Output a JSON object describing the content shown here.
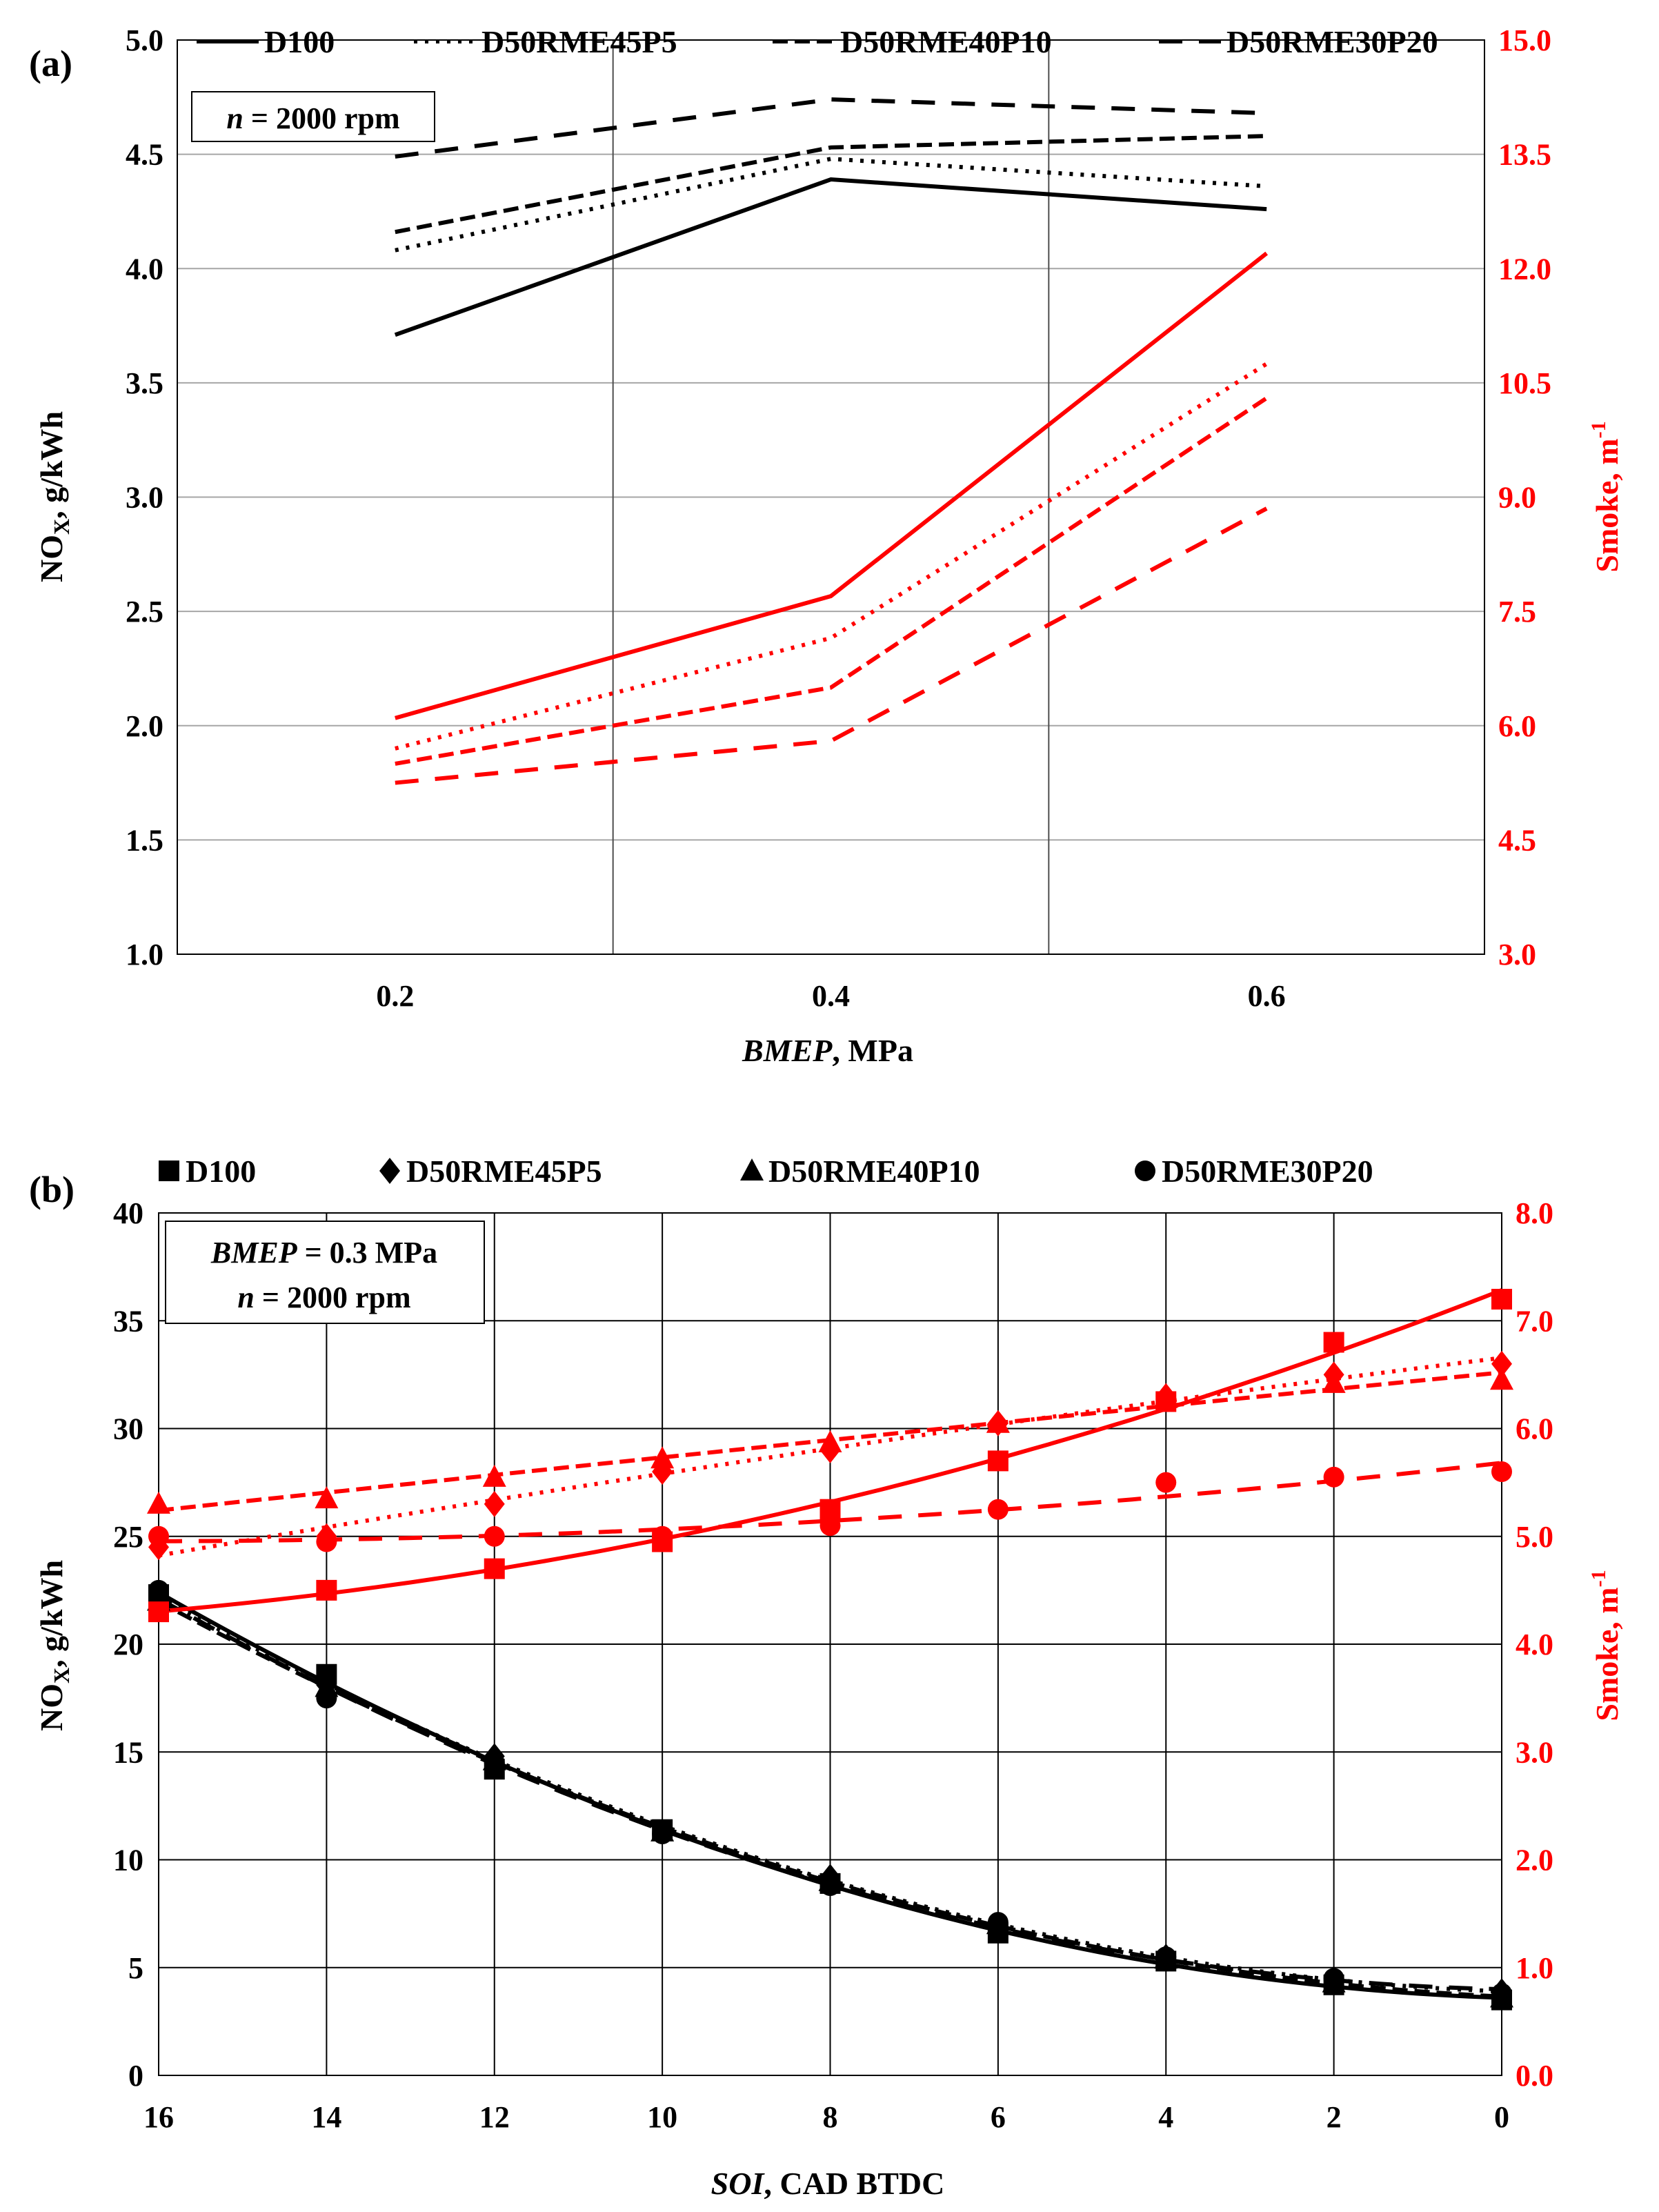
{
  "chart_data": [
    {
      "panel": "(a)",
      "type": "line",
      "note": {
        "var": "n",
        "text": " = 2000 rpm"
      },
      "x": [
        0.2,
        0.4,
        0.6
      ],
      "xlim": [
        0.1,
        0.7
      ],
      "xticks": [
        "0.2",
        "0.4",
        "0.6"
      ],
      "xlabel": {
        "italic": "BMEP",
        "rest": ", MPa"
      },
      "ylabel_left": {
        "pre": "NO",
        "sub": "X",
        "post": ", g/kWh"
      },
      "ylabel_right": {
        "pre": "Smoke, m",
        "sup": "-1"
      },
      "ylim_left": [
        1.0,
        5.0
      ],
      "ylim_right": [
        3.0,
        15.0
      ],
      "yticks_left": [
        "1.0",
        "1.5",
        "2.0",
        "2.5",
        "3.0",
        "3.5",
        "4.0",
        "4.5",
        "5.0"
      ],
      "yticks_right": [
        "3.0",
        "4.5",
        "6.0",
        "7.5",
        "9.0",
        "10.5",
        "12.0",
        "13.5",
        "15.0"
      ],
      "legend": [
        "D100",
        "D50RME45P5",
        "D50RME40P10",
        "D50RME30P20"
      ],
      "series": [
        {
          "name": "D100",
          "axis": "left",
          "color": "#000000",
          "values": [
            3.71,
            4.39,
            4.26
          ]
        },
        {
          "name": "D50RME45P5",
          "axis": "left",
          "color": "#000000",
          "values": [
            4.08,
            4.48,
            4.36
          ]
        },
        {
          "name": "D50RME40P10",
          "axis": "left",
          "color": "#000000",
          "values": [
            4.16,
            4.53,
            4.58
          ]
        },
        {
          "name": "D50RME30P20",
          "axis": "left",
          "color": "#000000",
          "values": [
            4.49,
            4.74,
            4.68
          ]
        },
        {
          "name": "D100",
          "axis": "right",
          "color": "#ff0000",
          "values": [
            6.1,
            7.7,
            12.2
          ]
        },
        {
          "name": "D50RME45P5",
          "axis": "right",
          "color": "#ff0000",
          "values": [
            5.7,
            7.15,
            10.75
          ]
        },
        {
          "name": "D50RME40P10",
          "axis": "right",
          "color": "#ff0000",
          "values": [
            5.5,
            6.5,
            10.3
          ]
        },
        {
          "name": "D50RME30P20",
          "axis": "right",
          "color": "#ff0000",
          "values": [
            5.25,
            5.8,
            8.85
          ]
        }
      ]
    },
    {
      "panel": "(b)",
      "type": "scatter",
      "note": {
        "line1_var": "BMEP",
        "line1_text": " = 0.3 MPa",
        "line2_var": "n",
        "line2_text": " = 2000 rpm"
      },
      "x": [
        16,
        14,
        12,
        10,
        8,
        6,
        4,
        2,
        0
      ],
      "xlim": [
        16,
        0
      ],
      "xticks": [
        "16",
        "14",
        "12",
        "10",
        "8",
        "6",
        "4",
        "2",
        "0"
      ],
      "xlabel": {
        "italic": "SOI",
        "rest": ", CAD BTDC"
      },
      "ylabel_left": {
        "pre": "NO",
        "sub": "X",
        "post": ", g/kWh"
      },
      "ylabel_right": {
        "pre": "Smoke, m",
        "sup": "-1"
      },
      "ylim_left": [
        0,
        40
      ],
      "ylim_right": [
        0.0,
        8.0
      ],
      "yticks_left": [
        "0",
        "5",
        "10",
        "15",
        "20",
        "25",
        "30",
        "35",
        "40"
      ],
      "yticks_right": [
        "0.0",
        "1.0",
        "2.0",
        "3.0",
        "4.0",
        "5.0",
        "6.0",
        "7.0",
        "8.0"
      ],
      "legend": [
        "D100",
        "D50RME45P5",
        "D50RME40P10",
        "D50RME30P20"
      ],
      "series": [
        {
          "name": "D100",
          "axis": "left",
          "color": "#000000",
          "marker": "square",
          "values": [
            22.3,
            18.6,
            14.2,
            11.4,
            8.9,
            6.6,
            5.3,
            4.2,
            3.5
          ]
        },
        {
          "name": "D50RME45P5",
          "axis": "left",
          "color": "#000000",
          "marker": "diamond",
          "values": [
            22.2,
            18.1,
            14.8,
            11.3,
            9.2,
            7.0,
            5.5,
            4.4,
            3.9
          ]
        },
        {
          "name": "D50RME40P10",
          "axis": "left",
          "color": "#000000",
          "marker": "triangle",
          "values": [
            22.0,
            18.0,
            14.6,
            11.3,
            9.0,
            7.0,
            5.4,
            4.3,
            3.6
          ]
        },
        {
          "name": "D50RME30P20",
          "axis": "left",
          "color": "#000000",
          "marker": "circle",
          "values": [
            22.5,
            17.5,
            14.5,
            11.2,
            8.8,
            7.1,
            5.5,
            4.5,
            3.8
          ]
        },
        {
          "name": "D100",
          "axis": "right",
          "color": "#ff0000",
          "marker": "square",
          "values": [
            4.3,
            4.5,
            4.7,
            4.95,
            5.25,
            5.7,
            6.25,
            6.8,
            7.2
          ]
        },
        {
          "name": "D50RME45P5",
          "axis": "right",
          "color": "#ff0000",
          "marker": "diamond",
          "values": [
            4.9,
            5.0,
            5.3,
            5.6,
            5.8,
            6.05,
            6.3,
            6.5,
            6.6
          ]
        },
        {
          "name": "D50RME40P10",
          "axis": "right",
          "color": "#ff0000",
          "marker": "triangle",
          "values": [
            5.3,
            5.35,
            5.55,
            5.72,
            5.87,
            6.05,
            6.28,
            6.42,
            6.45
          ]
        },
        {
          "name": "D50RME30P20",
          "axis": "right",
          "color": "#ff0000",
          "marker": "circle",
          "values": [
            5.0,
            4.95,
            5.0,
            5.0,
            5.1,
            5.25,
            5.5,
            5.55,
            5.6
          ]
        }
      ]
    }
  ]
}
